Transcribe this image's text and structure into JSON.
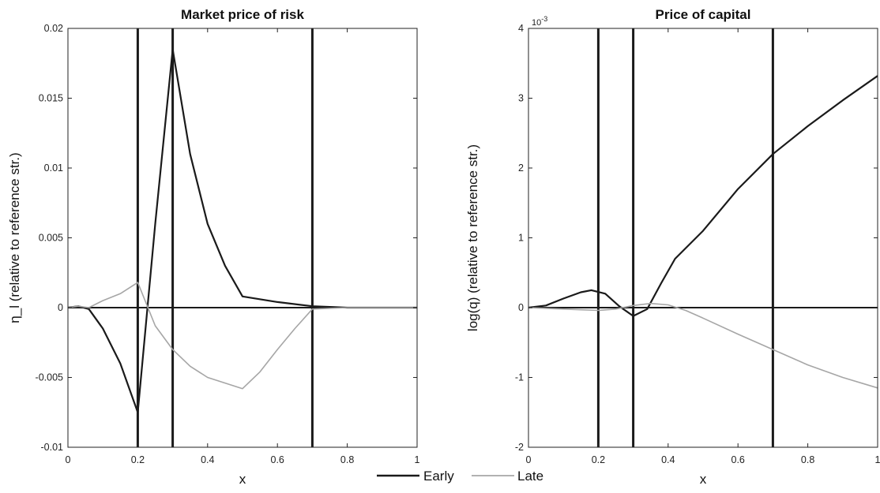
{
  "legend": {
    "entries": [
      "Early",
      "Late"
    ]
  },
  "chart_data": [
    {
      "type": "line",
      "title": "Market price of risk",
      "xlabel": "x",
      "ylabel": "η_l (relative to reference str.)",
      "xlim": [
        0,
        1
      ],
      "ylim": [
        -0.01,
        0.02
      ],
      "xticks": [
        0,
        0.2,
        0.4,
        0.6,
        0.8,
        1
      ],
      "yticks": [
        -0.01,
        -0.005,
        0,
        0.005,
        0.01,
        0.015,
        0.02
      ],
      "xtick_labels": [
        "0",
        "0.2",
        "0.4",
        "0.6",
        "0.8",
        "1"
      ],
      "ytick_labels": [
        "-0.01",
        "-0.005",
        "0",
        "0.005",
        "0.01",
        "0.015",
        "0.02"
      ],
      "vlines": [
        0.2,
        0.3,
        0.7
      ],
      "hline": 0,
      "series": [
        {
          "name": "Early",
          "color": "#1a1a1a",
          "x": [
            0,
            0.03,
            0.06,
            0.1,
            0.15,
            0.2,
            0.25,
            0.3,
            0.35,
            0.4,
            0.45,
            0.5,
            0.6,
            0.7,
            0.8,
            1
          ],
          "y": [
            0,
            0.0001,
            -0.0001,
            -0.0015,
            -0.004,
            -0.0075,
            0.006,
            0.0185,
            0.011,
            0.006,
            0.003,
            0.0008,
            0.0004,
            0.0001,
            0,
            0
          ]
        },
        {
          "name": "Late",
          "color": "#a6a6a6",
          "x": [
            0,
            0.03,
            0.06,
            0.1,
            0.15,
            0.2,
            0.25,
            0.3,
            0.35,
            0.4,
            0.45,
            0.5,
            0.55,
            0.6,
            0.65,
            0.7,
            0.8,
            1
          ],
          "y": [
            0,
            0.0001,
            0,
            0.0005,
            0.001,
            0.0018,
            -0.0013,
            -0.003,
            -0.0042,
            -0.005,
            -0.0054,
            -0.0058,
            -0.0046,
            -0.003,
            -0.0015,
            -0.0001,
            0,
            0
          ]
        }
      ]
    },
    {
      "type": "line",
      "title": "Price of capital",
      "xlabel": "x",
      "ylabel": "log(q) (relative to reference str.)",
      "y_scale_label": "10",
      "y_scale_exponent": "-3",
      "xlim": [
        0,
        1
      ],
      "ylim": [
        -2,
        4
      ],
      "xticks": [
        0,
        0.2,
        0.4,
        0.6,
        0.8,
        1
      ],
      "yticks": [
        -2,
        -1,
        0,
        1,
        2,
        3,
        4
      ],
      "xtick_labels": [
        "0",
        "0.2",
        "0.4",
        "0.6",
        "0.8",
        "1"
      ],
      "ytick_labels": [
        "-2",
        "-1",
        "0",
        "1",
        "2",
        "3",
        "4"
      ],
      "vlines": [
        0.2,
        0.3,
        0.7
      ],
      "hline": 0,
      "series": [
        {
          "name": "Early",
          "color": "#1a1a1a",
          "x": [
            0,
            0.05,
            0.1,
            0.15,
            0.18,
            0.22,
            0.26,
            0.3,
            0.34,
            0.38,
            0.42,
            0.5,
            0.6,
            0.7,
            0.8,
            0.9,
            1
          ],
          "y": [
            0,
            0.03,
            0.13,
            0.22,
            0.25,
            0.2,
            0.02,
            -0.12,
            -0.02,
            0.35,
            0.7,
            1.1,
            1.7,
            2.2,
            2.6,
            2.97,
            3.32
          ]
        },
        {
          "name": "Late",
          "color": "#a6a6a6",
          "x": [
            0,
            0.05,
            0.1,
            0.15,
            0.2,
            0.25,
            0.3,
            0.35,
            0.4,
            0.45,
            0.5,
            0.6,
            0.7,
            0.8,
            0.9,
            1
          ],
          "y": [
            0,
            -0.01,
            -0.02,
            -0.03,
            -0.04,
            -0.02,
            0.03,
            0.06,
            0.04,
            -0.04,
            -0.15,
            -0.38,
            -0.6,
            -0.82,
            -1.0,
            -1.15
          ]
        }
      ]
    }
  ]
}
